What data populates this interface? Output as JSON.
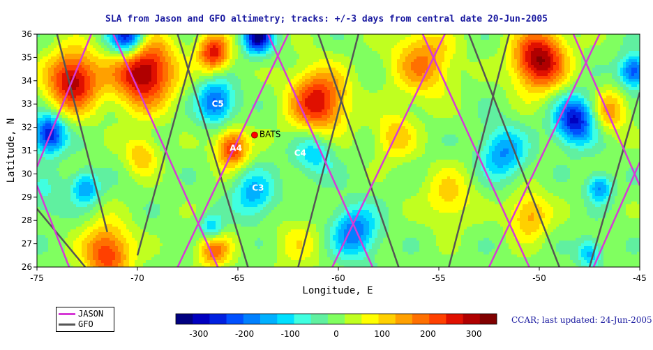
{
  "title": "SLA from Jason and GFO altimetry; tracks: +/-3 days from central date 20-Jun-2005",
  "credit": "CCAR; last updated: 24-Jun-2005",
  "axes": {
    "xlabel": "Longitude, E",
    "ylabel": "Latitude, N",
    "xlim": [
      -75,
      -45
    ],
    "ylim": [
      26,
      36
    ],
    "xticks": [
      "-75",
      "-70",
      "-65",
      "-60",
      "-55",
      "-50",
      "-45"
    ],
    "yticks": [
      "26",
      "27",
      "28",
      "29",
      "30",
      "31",
      "32",
      "33",
      "34",
      "35",
      "36"
    ]
  },
  "legend": {
    "jason_label": "JASON",
    "gfo_label": "GFO",
    "jason_color": "#d63ad6",
    "gfo_color": "#555555"
  },
  "colorbar": {
    "ticks": [
      "-300",
      "-200",
      "-100",
      "0",
      "100",
      "200",
      "300"
    ],
    "range": [
      -350,
      350
    ],
    "colors": [
      "#000080",
      "#0000c0",
      "#0020e0",
      "#0050ff",
      "#0080ff",
      "#00b0ff",
      "#00e0ff",
      "#40ffe0",
      "#60f0a0",
      "#80ff60",
      "#c0ff20",
      "#ffff00",
      "#ffd000",
      "#ffa000",
      "#ff7000",
      "#ff4000",
      "#e01000",
      "#b00000",
      "#800000"
    ]
  },
  "map_data": {
    "features": [
      {
        "lon": -73.2,
        "lat": 34.0,
        "amp": 300,
        "r": 1.3
      },
      {
        "lon": -69.7,
        "lat": 34.4,
        "amp": 330,
        "r": 1.5
      },
      {
        "lon": -66.2,
        "lat": 35.2,
        "amp": 260,
        "r": 0.8
      },
      {
        "lon": -61.0,
        "lat": 33.1,
        "amp": 270,
        "r": 1.4
      },
      {
        "lon": -65.3,
        "lat": 31.1,
        "amp": 250,
        "r": 0.8
      },
      {
        "lon": -55.8,
        "lat": 34.8,
        "amp": 170,
        "r": 1.5
      },
      {
        "lon": -50.0,
        "lat": 34.9,
        "amp": 320,
        "r": 1.3
      },
      {
        "lon": -71.5,
        "lat": 26.6,
        "amp": 240,
        "r": 1.2
      },
      {
        "lon": -66.2,
        "lat": 26.8,
        "amp": 200,
        "r": 0.8
      },
      {
        "lon": -50.5,
        "lat": 28.2,
        "amp": 150,
        "r": 1.0
      },
      {
        "lon": -69.8,
        "lat": 30.8,
        "amp": 130,
        "r": 0.8
      },
      {
        "lon": -57.2,
        "lat": 31.6,
        "amp": 120,
        "r": 1.0
      },
      {
        "lon": -54.5,
        "lat": 29.0,
        "amp": 110,
        "r": 1.2
      },
      {
        "lon": -46.5,
        "lat": 32.7,
        "amp": 150,
        "r": 0.9
      },
      {
        "lon": -62.0,
        "lat": 27.0,
        "amp": 70,
        "r": 1.2
      },
      {
        "lon": -66.1,
        "lat": 33.1,
        "amp": -220,
        "r": 0.9
      },
      {
        "lon": -74.4,
        "lat": 31.7,
        "amp": -290,
        "r": 0.8
      },
      {
        "lon": -48.2,
        "lat": 32.3,
        "amp": -290,
        "r": 1.0
      },
      {
        "lon": -45.3,
        "lat": 34.4,
        "amp": -240,
        "r": 0.7
      },
      {
        "lon": -59.2,
        "lat": 27.5,
        "amp": -200,
        "r": 1.1
      },
      {
        "lon": -72.6,
        "lat": 29.4,
        "amp": -170,
        "r": 0.7
      },
      {
        "lon": -51.8,
        "lat": 30.9,
        "amp": -170,
        "r": 1.1
      },
      {
        "lon": -64.2,
        "lat": 29.1,
        "amp": -150,
        "r": 1.0
      },
      {
        "lon": -61.2,
        "lat": 30.9,
        "amp": -130,
        "r": 1.0
      },
      {
        "lon": -66.3,
        "lat": 27.6,
        "amp": -170,
        "r": 0.6
      },
      {
        "lon": -70.5,
        "lat": 35.9,
        "amp": -330,
        "r": 0.9
      },
      {
        "lon": -64.0,
        "lat": 35.9,
        "amp": -330,
        "r": 0.7
      },
      {
        "lon": -47.0,
        "lat": 29.4,
        "amp": -180,
        "r": 0.6
      },
      {
        "lon": -74.6,
        "lat": 29.0,
        "amp": -60,
        "r": 1.0
      },
      {
        "lon": -47.5,
        "lat": 26.6,
        "amp": -150,
        "r": 0.6
      }
    ],
    "markers": [
      {
        "label": "C5",
        "lon": -66.0,
        "lat": 33.0
      },
      {
        "label": "A4",
        "lon": -65.1,
        "lat": 31.1
      },
      {
        "label": "C4",
        "lon": -61.9,
        "lat": 30.9
      },
      {
        "label": "C3",
        "lon": -64.0,
        "lat": 29.4
      }
    ],
    "station": {
      "label": "BATS",
      "lon": -64.17,
      "lat": 31.67
    },
    "jason_tracks": [
      [
        [
          -75.0,
          30.3
        ],
        [
          -72.3,
          36.0
        ]
      ],
      [
        [
          -68.0,
          26.0
        ],
        [
          -62.5,
          36.0
        ]
      ],
      [
        [
          -60.3,
          26.0
        ],
        [
          -54.7,
          36.0
        ]
      ],
      [
        [
          -52.5,
          26.0
        ],
        [
          -47.0,
          36.0
        ]
      ],
      [
        [
          -71.2,
          36.0
        ],
        [
          -66.0,
          26.0
        ]
      ],
      [
        [
          -63.5,
          36.0
        ],
        [
          -58.3,
          26.0
        ]
      ],
      [
        [
          -55.8,
          36.0
        ],
        [
          -50.5,
          26.0
        ]
      ],
      [
        [
          -48.3,
          36.0
        ],
        [
          -45.0,
          29.5
        ]
      ],
      [
        [
          -75.0,
          29.5
        ],
        [
          -73.4,
          26.0
        ]
      ],
      [
        [
          -47.3,
          26.0
        ],
        [
          -45.0,
          30.5
        ]
      ]
    ],
    "gfo_tracks": [
      [
        [
          -70.0,
          26.5
        ],
        [
          -67.0,
          36.0
        ]
      ],
      [
        [
          -62.0,
          26.0
        ],
        [
          -59.0,
          36.0
        ]
      ],
      [
        [
          -54.5,
          26.0
        ],
        [
          -51.5,
          36.0
        ]
      ],
      [
        [
          -47.5,
          26.0
        ],
        [
          -45.0,
          33.5
        ]
      ],
      [
        [
          -68.0,
          36.0
        ],
        [
          -64.5,
          26.0
        ]
      ],
      [
        [
          -61.0,
          36.0
        ],
        [
          -57.0,
          26.0
        ]
      ],
      [
        [
          -53.5,
          36.0
        ],
        [
          -49.0,
          26.0
        ]
      ],
      [
        [
          -74.0,
          36.0
        ],
        [
          -71.5,
          27.5
        ]
      ],
      [
        [
          -75.0,
          28.5
        ],
        [
          -72.6,
          26.0
        ]
      ]
    ]
  }
}
